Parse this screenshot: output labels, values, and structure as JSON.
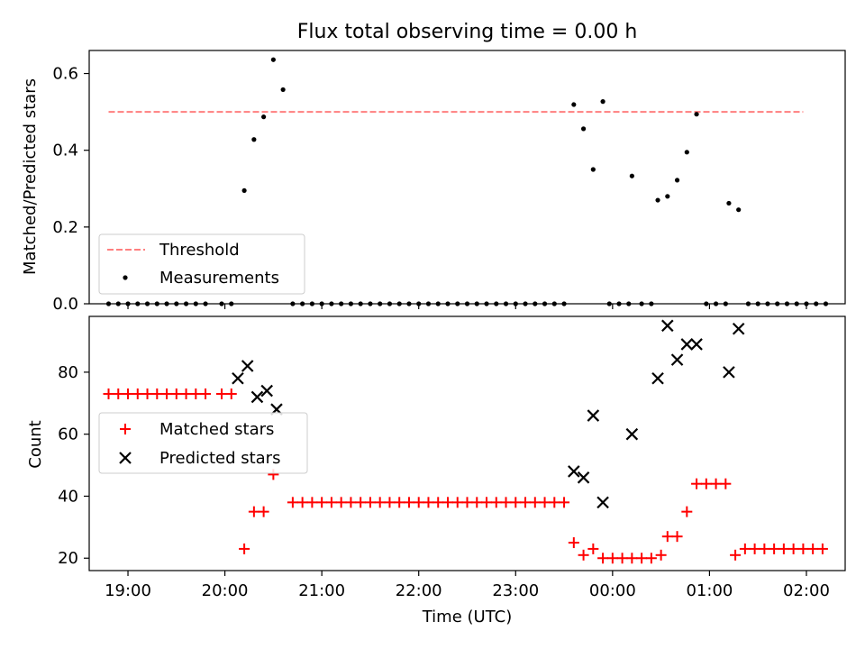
{
  "chart_data": [
    {
      "type": "scatter",
      "title": "Flux total observing time = 0.00 h",
      "ylabel": "Matched/Predicted stars",
      "xlabel": "",
      "xlim": [
        "18:36",
        "02:24"
      ],
      "ylim": [
        0,
        0.66
      ],
      "yticks": [
        0.0,
        0.2,
        0.4,
        0.6
      ],
      "ytick_labels": [
        "0.0",
        "0.2",
        "0.4",
        "0.6"
      ],
      "grid": false,
      "legend_position": "lower-left",
      "legend": [
        "Threshold",
        "Measurements"
      ],
      "threshold": {
        "name": "Threshold",
        "value": 0.5,
        "x_start": "18:48",
        "x_end": "01:58",
        "color": "#ff7f7f",
        "style": "dashed"
      },
      "series": [
        {
          "name": "Measurements",
          "marker": "dot",
          "color": "#000000",
          "points": [
            [
              "18:48",
              0
            ],
            [
              "18:54",
              0
            ],
            [
              "19:00",
              0
            ],
            [
              "19:06",
              0
            ],
            [
              "19:12",
              0
            ],
            [
              "19:18",
              0
            ],
            [
              "19:24",
              0
            ],
            [
              "19:30",
              0
            ],
            [
              "19:36",
              0
            ],
            [
              "19:42",
              0
            ],
            [
              "19:48",
              0
            ],
            [
              "19:58",
              0
            ],
            [
              "20:04",
              0
            ],
            [
              "20:12",
              0.295
            ],
            [
              "20:18",
              0.428
            ],
            [
              "20:24",
              0.487
            ],
            [
              "20:30",
              0.636
            ],
            [
              "20:36",
              0.558
            ],
            [
              "20:42",
              0
            ],
            [
              "20:48",
              0
            ],
            [
              "20:54",
              0
            ],
            [
              "21:00",
              0
            ],
            [
              "21:06",
              0
            ],
            [
              "21:12",
              0
            ],
            [
              "21:18",
              0
            ],
            [
              "21:24",
              0
            ],
            [
              "21:30",
              0
            ],
            [
              "21:36",
              0
            ],
            [
              "21:42",
              0
            ],
            [
              "21:48",
              0
            ],
            [
              "21:54",
              0
            ],
            [
              "22:00",
              0
            ],
            [
              "22:06",
              0
            ],
            [
              "22:12",
              0
            ],
            [
              "22:18",
              0
            ],
            [
              "22:24",
              0
            ],
            [
              "22:30",
              0
            ],
            [
              "22:36",
              0
            ],
            [
              "22:42",
              0
            ],
            [
              "22:48",
              0
            ],
            [
              "22:54",
              0
            ],
            [
              "23:00",
              0
            ],
            [
              "23:06",
              0
            ],
            [
              "23:12",
              0
            ],
            [
              "23:18",
              0
            ],
            [
              "23:24",
              0
            ],
            [
              "23:30",
              0
            ],
            [
              "23:36",
              0.519
            ],
            [
              "23:42",
              0.456
            ],
            [
              "23:48",
              0.35
            ],
            [
              "23:54",
              0.527
            ],
            [
              "23:58",
              0
            ],
            [
              "00:04",
              0
            ],
            [
              "00:10",
              0
            ],
            [
              "00:12",
              0.333
            ],
            [
              "00:18",
              0
            ],
            [
              "00:24",
              0
            ],
            [
              "00:28",
              0.27
            ],
            [
              "00:34",
              0.28
            ],
            [
              "00:40",
              0.322
            ],
            [
              "00:46",
              0.395
            ],
            [
              "00:52",
              0.494
            ],
            [
              "00:58",
              0
            ],
            [
              "01:04",
              0
            ],
            [
              "01:10",
              0
            ],
            [
              "01:12",
              0.262
            ],
            [
              "01:18",
              0.245
            ],
            [
              "01:24",
              0
            ],
            [
              "01:30",
              0
            ],
            [
              "01:36",
              0
            ],
            [
              "01:42",
              0
            ],
            [
              "01:48",
              0
            ],
            [
              "01:54",
              0
            ],
            [
              "02:00",
              0
            ],
            [
              "02:06",
              0
            ],
            [
              "02:12",
              0
            ]
          ]
        }
      ]
    },
    {
      "type": "scatter",
      "title": "",
      "xlabel": "Time (UTC)",
      "ylabel": "Count",
      "xlim": [
        "18:36",
        "02:24"
      ],
      "ylim": [
        16,
        98
      ],
      "xticks": [
        "19:00",
        "20:00",
        "21:00",
        "22:00",
        "23:00",
        "00:00",
        "01:00",
        "02:00"
      ],
      "yticks": [
        20,
        40,
        60,
        80
      ],
      "ytick_labels": [
        "20",
        "40",
        "60",
        "80"
      ],
      "grid": false,
      "legend_position": "center-left",
      "legend": [
        "Matched stars",
        "Predicted stars"
      ],
      "series": [
        {
          "name": "Matched stars",
          "marker": "plus",
          "color": "#ff0000",
          "points": [
            [
              "18:48",
              73
            ],
            [
              "18:54",
              73
            ],
            [
              "19:00",
              73
            ],
            [
              "19:06",
              73
            ],
            [
              "19:12",
              73
            ],
            [
              "19:18",
              73
            ],
            [
              "19:24",
              73
            ],
            [
              "19:30",
              73
            ],
            [
              "19:36",
              73
            ],
            [
              "19:42",
              73
            ],
            [
              "19:48",
              73
            ],
            [
              "19:58",
              73
            ],
            [
              "20:04",
              73
            ],
            [
              "20:12",
              23
            ],
            [
              "20:18",
              35
            ],
            [
              "20:24",
              35
            ],
            [
              "20:30",
              47
            ],
            [
              "20:42",
              38
            ],
            [
              "20:48",
              38
            ],
            [
              "20:54",
              38
            ],
            [
              "21:00",
              38
            ],
            [
              "21:06",
              38
            ],
            [
              "21:12",
              38
            ],
            [
              "21:18",
              38
            ],
            [
              "21:24",
              38
            ],
            [
              "21:30",
              38
            ],
            [
              "21:36",
              38
            ],
            [
              "21:42",
              38
            ],
            [
              "21:48",
              38
            ],
            [
              "21:54",
              38
            ],
            [
              "22:00",
              38
            ],
            [
              "22:06",
              38
            ],
            [
              "22:12",
              38
            ],
            [
              "22:18",
              38
            ],
            [
              "22:24",
              38
            ],
            [
              "22:30",
              38
            ],
            [
              "22:36",
              38
            ],
            [
              "22:42",
              38
            ],
            [
              "22:48",
              38
            ],
            [
              "22:54",
              38
            ],
            [
              "23:00",
              38
            ],
            [
              "23:06",
              38
            ],
            [
              "23:12",
              38
            ],
            [
              "23:18",
              38
            ],
            [
              "23:24",
              38
            ],
            [
              "23:30",
              38
            ],
            [
              "23:36",
              25
            ],
            [
              "23:42",
              21
            ],
            [
              "23:48",
              23
            ],
            [
              "23:54",
              20
            ],
            [
              "00:00",
              20
            ],
            [
              "00:06",
              20
            ],
            [
              "00:12",
              20
            ],
            [
              "00:18",
              20
            ],
            [
              "00:24",
              20
            ],
            [
              "00:30",
              21
            ],
            [
              "00:34",
              27
            ],
            [
              "00:40",
              27
            ],
            [
              "00:46",
              35
            ],
            [
              "00:52",
              44
            ],
            [
              "00:58",
              44
            ],
            [
              "01:04",
              44
            ],
            [
              "01:10",
              44
            ],
            [
              "01:16",
              21
            ],
            [
              "01:22",
              23
            ],
            [
              "01:28",
              23
            ],
            [
              "01:34",
              23
            ],
            [
              "01:40",
              23
            ],
            [
              "01:46",
              23
            ],
            [
              "01:52",
              23
            ],
            [
              "01:58",
              23
            ],
            [
              "02:04",
              23
            ],
            [
              "02:10",
              23
            ]
          ]
        },
        {
          "name": "Predicted stars",
          "marker": "x",
          "color": "#000000",
          "points": [
            [
              "20:08",
              78
            ],
            [
              "20:14",
              82
            ],
            [
              "20:20",
              72
            ],
            [
              "20:26",
              74
            ],
            [
              "20:32",
              68
            ],
            [
              "23:36",
              48
            ],
            [
              "23:42",
              46
            ],
            [
              "23:48",
              66
            ],
            [
              "23:54",
              38
            ],
            [
              "00:12",
              60
            ],
            [
              "00:28",
              78
            ],
            [
              "00:34",
              95
            ],
            [
              "00:40",
              84
            ],
            [
              "00:46",
              89
            ],
            [
              "00:52",
              89
            ],
            [
              "01:12",
              80
            ],
            [
              "01:18",
              94
            ]
          ]
        }
      ]
    }
  ]
}
